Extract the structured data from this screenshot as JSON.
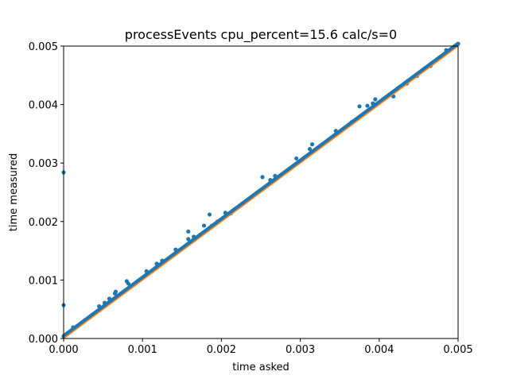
{
  "chart_data": {
    "type": "scatter",
    "title": "processEvents cpu_percent=15.6 calc/s=0",
    "xlabel": "time asked",
    "ylabel": "time measured",
    "xlim": [
      0,
      0.005
    ],
    "ylim": [
      0,
      0.005
    ],
    "x_ticks": [
      "0.000",
      "0.001",
      "0.002",
      "0.003",
      "0.004",
      "0.005"
    ],
    "y_ticks": [
      "0.000",
      "0.001",
      "0.002",
      "0.003",
      "0.004",
      "0.005"
    ],
    "grid": false,
    "legend": "none",
    "colors": {
      "points": "#1f77b4",
      "reference_line": "#ff7f0e",
      "axes": "#000000"
    },
    "reference_line": {
      "x": [
        0,
        0.005
      ],
      "y": [
        0,
        0.005
      ]
    },
    "series": [
      {
        "color": "#1f77b4",
        "main_band": {
          "x_start": 0.0,
          "x_end": 0.005,
          "offset": 4e-05,
          "n_points": 500
        },
        "points": [
          [
            0.0,
            0.00284
          ],
          [
            0.0,
            0.00057
          ],
          [
            0.00012,
            0.00019
          ],
          [
            0.00045,
            0.00055
          ],
          [
            0.00052,
            0.00061
          ],
          [
            0.00058,
            0.00068
          ],
          [
            0.00065,
            0.00077
          ],
          [
            0.00066,
            0.0008
          ],
          [
            0.0008,
            0.00098
          ],
          [
            0.00082,
            0.00094
          ],
          [
            0.00105,
            0.00115
          ],
          [
            0.00118,
            0.00128
          ],
          [
            0.00125,
            0.00133
          ],
          [
            0.00142,
            0.00152
          ],
          [
            0.00158,
            0.00183
          ],
          [
            0.00158,
            0.0017
          ],
          [
            0.00165,
            0.00174
          ],
          [
            0.00178,
            0.00193
          ],
          [
            0.00185,
            0.00212
          ],
          [
            0.00188,
            0.00193
          ],
          [
            0.00195,
            0.002
          ],
          [
            0.00205,
            0.00215
          ],
          [
            0.00212,
            0.00214
          ],
          [
            0.00252,
            0.00276
          ],
          [
            0.00262,
            0.00271
          ],
          [
            0.00268,
            0.00278
          ],
          [
            0.00295,
            0.00308
          ],
          [
            0.00315,
            0.00332
          ],
          [
            0.00312,
            0.00324
          ],
          [
            0.00345,
            0.00355
          ],
          [
            0.00365,
            0.0037
          ],
          [
            0.00375,
            0.00397
          ],
          [
            0.00385,
            0.00398
          ],
          [
            0.00392,
            0.00402
          ],
          [
            0.00395,
            0.00409
          ],
          [
            0.00425,
            0.00429
          ],
          [
            0.00418,
            0.00414
          ],
          [
            0.00435,
            0.00436
          ],
          [
            0.00448,
            0.00449
          ],
          [
            0.00465,
            0.00466
          ],
          [
            0.00485,
            0.00493
          ],
          [
            0.00495,
            0.00498
          ]
        ]
      }
    ]
  }
}
